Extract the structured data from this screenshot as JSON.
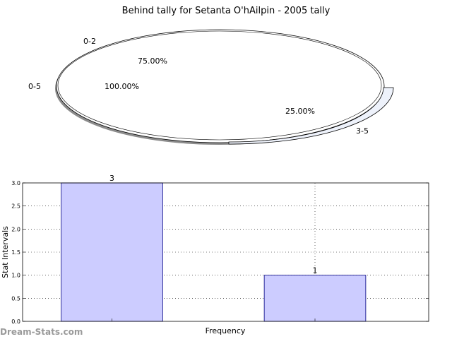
{
  "chart_data": [
    {
      "type": "pie",
      "title": "Behind tally for Setanta O'hAilpin - 2005 tally",
      "slices": [
        {
          "label": "0-2",
          "percent_label": "75.00%",
          "value": 75.0
        },
        {
          "label": "0-5",
          "percent_label": "100.00%",
          "value": 100.0
        },
        {
          "label": "3-5",
          "percent_label": "25.00%",
          "value": 25.0
        }
      ],
      "colors": {
        "ring": "#ffffff",
        "small_slice": "#eef2fb",
        "shadow": "#8c8c8c",
        "edge": "#000000"
      }
    },
    {
      "type": "bar",
      "categories": [
        "",
        ""
      ],
      "values": [
        3,
        1
      ],
      "value_labels": [
        "3",
        "1"
      ],
      "xlabel": "Frequency",
      "ylabel": "Stat Intervals",
      "ylim": [
        0,
        3.0
      ],
      "yticks": [
        "0.0",
        "0.5",
        "1.0",
        "1.5",
        "2.0",
        "2.5",
        "3.0"
      ],
      "grid": true,
      "bar_color": "#ccccff",
      "bar_edge": "#00007f"
    }
  ],
  "watermark": "Dream-Stats.com"
}
